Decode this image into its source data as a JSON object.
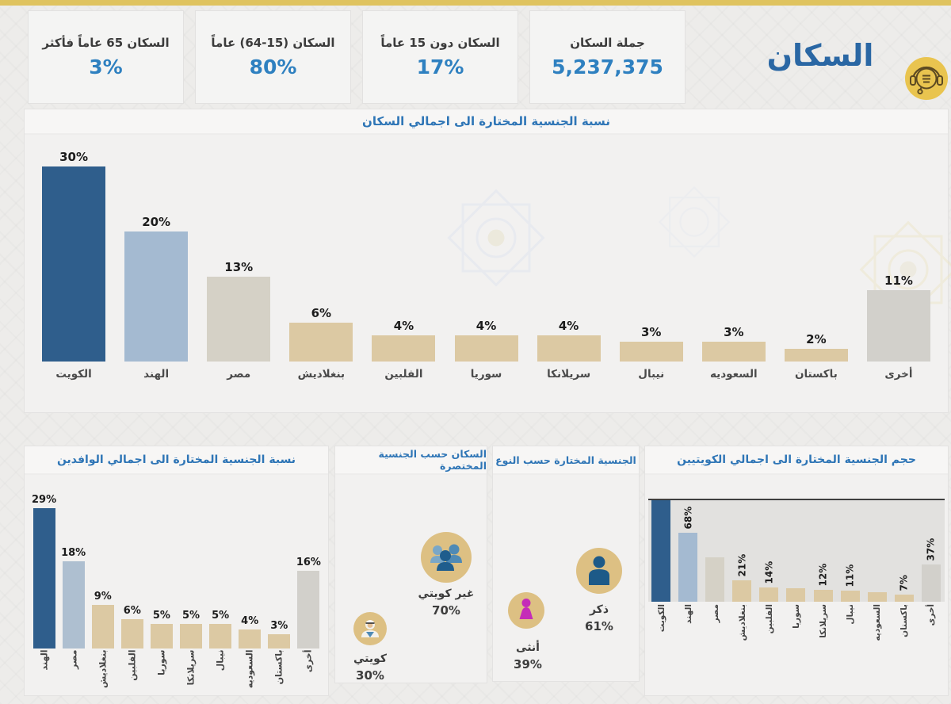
{
  "header": {
    "page_title": "السكان",
    "cards": [
      {
        "label": "السكان 65 عاماً فأكثر",
        "value": "3%"
      },
      {
        "label": "السكان (15-64) عاماً",
        "value": "80%"
      },
      {
        "label": "السكان دون 15 عاماً",
        "value": "17%"
      },
      {
        "label": "جملة السكان",
        "value": "5,237,375"
      }
    ]
  },
  "colors": {
    "topbar_gold": "#dfc35f",
    "page_title_blue": "#2a67a4",
    "panel_title_blue": "#2e75b6",
    "card_value_blue": "#2e80c0",
    "icon_circle_tan": "#ddc083",
    "male_blue": "#1d5a88",
    "female_magenta": "#c52cb8",
    "palette": {
      "dark_blue": "#2f5e8c",
      "steel_blue": "#a4bad1",
      "steel_blue_2": "#aebfd0",
      "warm_gray": "#d5d1c6",
      "tan": "#dcc9a3",
      "light_gray": "#d2d0cb"
    }
  },
  "chart_data": [
    {
      "id": "selected-nationality-to-total-population",
      "type": "bar",
      "title": "نسبة الجنسية المختارة الى اجمالي السكان",
      "categories": [
        "الكويت",
        "الهند",
        "مصر",
        "بنغلاديش",
        "الفلبين",
        "سوريا",
        "سريلانكا",
        "نيبال",
        "السعوديه",
        "باكستان",
        "أخرى"
      ],
      "values": [
        30,
        20,
        13,
        6,
        4,
        4,
        4,
        3,
        3,
        2,
        11
      ],
      "labels": [
        "30%",
        "20%",
        "13%",
        "6%",
        "4%",
        "4%",
        "4%",
        "3%",
        "3%",
        "2%",
        "11%"
      ],
      "bar_colors": [
        "dark_blue",
        "steel_blue",
        "warm_gray",
        "tan",
        "tan",
        "tan",
        "tan",
        "tan",
        "tan",
        "tan",
        "light_gray"
      ],
      "unit": "%",
      "ylim": [
        0,
        32
      ],
      "grid": false,
      "legend": "none"
    },
    {
      "id": "selected-nationality-to-total-expats",
      "type": "bar",
      "title": "نسبة الجنسية المختارة الى اجمالي الوافدين",
      "categories": [
        "الهند",
        "مصر",
        "بنغلاديش",
        "الفلبين",
        "سوريا",
        "سريلانكا",
        "نيبال",
        "السعوديه",
        "باكستان",
        "أخرى"
      ],
      "values": [
        29,
        18,
        9,
        6,
        5,
        5,
        5,
        4,
        3,
        16
      ],
      "labels": [
        "29%",
        "18%",
        "9%",
        "6%",
        "5%",
        "5%",
        "5%",
        "4%",
        "3%",
        "16%"
      ],
      "bar_colors": [
        "dark_blue",
        "steel_blue_2",
        "tan",
        "tan",
        "tan",
        "tan",
        "tan",
        "tan",
        "tan",
        "light_gray"
      ],
      "unit": "%",
      "ylim": [
        0,
        32
      ],
      "grid": false,
      "legend": "none"
    },
    {
      "id": "population-by-short-nationality",
      "type": "icon-stat",
      "title": "السكان حسب الجنسية المختصرة",
      "items": [
        {
          "label": "غير كويتي",
          "value": "70%",
          "icon": "non-kuwaiti-group-icon"
        },
        {
          "label": "كويتي",
          "value": "30%",
          "icon": "kuwaiti-person-icon"
        }
      ]
    },
    {
      "id": "selected-nationality-by-gender",
      "type": "icon-stat",
      "title": "الجنسية المختارة حسب النوع",
      "items": [
        {
          "label": "ذكر",
          "value": "61%",
          "icon": "male-icon"
        },
        {
          "label": "أنثى",
          "value": "39%",
          "icon": "female-icon"
        }
      ]
    },
    {
      "id": "selected-nationality-size-to-kuwaitis",
      "type": "bar",
      "title": "حجم الجنسية المختارة الى اجمالي الكويتيين",
      "categories": [
        "الكويت",
        "الهند",
        "مصر",
        "بنغلاديش",
        "الفلبين",
        "سوريا",
        "سريلانكا",
        "نيبال",
        "السعوديه",
        "باكستان",
        "أخرى"
      ],
      "values": [
        100,
        68,
        44,
        21,
        14,
        13,
        12,
        11,
        9,
        7,
        37
      ],
      "labels": [
        "",
        "68%",
        "",
        "21%",
        "14%",
        "",
        "12%",
        "11%",
        "",
        "7%",
        "37%"
      ],
      "unlabeled_values_estimated": true,
      "bar_colors": [
        "dark_blue",
        "steel_blue",
        "warm_gray",
        "tan",
        "tan",
        "tan",
        "tan",
        "tan",
        "tan",
        "tan",
        "light_gray"
      ],
      "unit": "%",
      "ylim": [
        0,
        100
      ],
      "grid": false,
      "legend": "none",
      "first_bar_clipped_at_top": true
    }
  ]
}
